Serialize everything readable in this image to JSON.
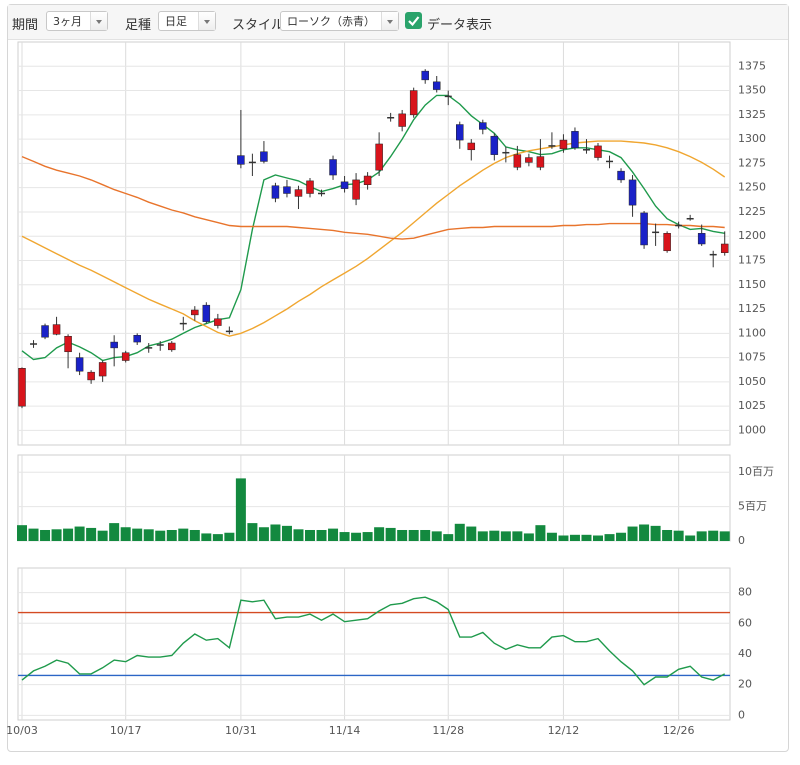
{
  "toolbar": {
    "period_label": "期間",
    "period_value": "3ヶ月",
    "bar_label": "足種",
    "bar_value": "日足",
    "style_label": "スタイル",
    "style_value": "ローソク（赤青）",
    "data_display": "データ表示",
    "data_display_checked": true
  },
  "chart_data": [
    {
      "type": "candlestick",
      "categories": [
        "10/03",
        null,
        null,
        null,
        null,
        null,
        null,
        null,
        null,
        "10/17",
        null,
        null,
        null,
        null,
        null,
        null,
        null,
        null,
        null,
        "10/31",
        null,
        null,
        null,
        null,
        null,
        null,
        null,
        null,
        "11/14",
        null,
        null,
        null,
        null,
        null,
        null,
        null,
        null,
        "11/28",
        null,
        null,
        null,
        null,
        null,
        null,
        null,
        null,
        null,
        "12/12",
        null,
        null,
        null,
        null,
        null,
        null,
        null,
        null,
        null,
        "12/26",
        null,
        null,
        null,
        null
      ],
      "open": [
        1025,
        1089,
        1108,
        1099,
        1081,
        1075,
        1052,
        1056,
        1091,
        1072,
        1098,
        1085,
        1088,
        1083,
        1110,
        1119,
        1129,
        1108,
        1102,
        1283,
        1276,
        1287,
        1252,
        1251,
        1241,
        1244,
        1244,
        1279,
        1256,
        1238,
        1253,
        1268,
        1322,
        1313,
        1325,
        1370,
        1359,
        1344,
        1315,
        1289,
        1317,
        1303,
        1286,
        1271,
        1276,
        1271,
        1293,
        1290,
        1308,
        1289,
        1281,
        1277,
        1267,
        1258,
        1224,
        1204,
        1185,
        1211,
        1218,
        1203,
        1181,
        1183
      ],
      "high": [
        1065,
        1093,
        1110,
        1117,
        1099,
        1080,
        1062,
        1072,
        1098,
        1082,
        1100,
        1090,
        1092,
        1092,
        1117,
        1128,
        1132,
        1120,
        1107,
        1330,
        1285,
        1298,
        1255,
        1258,
        1252,
        1260,
        1248,
        1283,
        1262,
        1265,
        1266,
        1307,
        1327,
        1330,
        1353,
        1372,
        1365,
        1350,
        1318,
        1300,
        1320,
        1306,
        1292,
        1293,
        1285,
        1300,
        1307,
        1305,
        1312,
        1300,
        1296,
        1283,
        1270,
        1263,
        1226,
        1213,
        1205,
        1215,
        1222,
        1212,
        1185,
        1205
      ],
      "low": [
        1023,
        1085,
        1094,
        1098,
        1064,
        1057,
        1048,
        1050,
        1066,
        1070,
        1088,
        1080,
        1082,
        1081,
        1103,
        1113,
        1110,
        1105,
        1099,
        1270,
        1262,
        1275,
        1235,
        1240,
        1228,
        1240,
        1241,
        1258,
        1245,
        1232,
        1248,
        1262,
        1318,
        1308,
        1322,
        1357,
        1348,
        1335,
        1290,
        1278,
        1305,
        1278,
        1276,
        1268,
        1272,
        1268,
        1290,
        1286,
        1289,
        1285,
        1278,
        1270,
        1255,
        1220,
        1187,
        1190,
        1183,
        1208,
        1216,
        1190,
        1168,
        1180
      ],
      "close": [
        1064,
        1089,
        1096,
        1109,
        1097,
        1061,
        1060,
        1070,
        1085,
        1080,
        1091,
        1085,
        1088,
        1090,
        1110,
        1124,
        1112,
        1115,
        1102,
        1274,
        1276,
        1277,
        1239,
        1244,
        1248,
        1257,
        1244,
        1263,
        1249,
        1258,
        1262,
        1295,
        1322,
        1326,
        1350,
        1361,
        1351,
        1344,
        1299,
        1296,
        1310,
        1284,
        1286,
        1284,
        1281,
        1282,
        1293,
        1299,
        1291,
        1289,
        1293,
        1277,
        1258,
        1232,
        1191,
        1204,
        1203,
        1211,
        1218,
        1192,
        1181,
        1192
      ],
      "up_color": "#d8141c",
      "down_color": "#1a22c8",
      "doji_color": "#333333",
      "series": [
        {
          "color": "#1f9a4c",
          "values": [
            1082,
            1073,
            1075,
            1085,
            1091,
            1086,
            1080,
            1072,
            1075,
            1076,
            1080,
            1087,
            1090,
            1094,
            1100,
            1106,
            1110,
            1114,
            1116,
            1145,
            1207,
            1258,
            1263,
            1260,
            1257,
            1251,
            1246,
            1249,
            1253,
            1254,
            1258,
            1266,
            1282,
            1300,
            1320,
            1335,
            1345,
            1345,
            1336,
            1324,
            1315,
            1306,
            1292,
            1289,
            1287,
            1284,
            1285,
            1289,
            1291,
            1291,
            1289,
            1287,
            1281,
            1266,
            1249,
            1231,
            1218,
            1212,
            1207,
            1208,
            1205,
            1203
          ]
        },
        {
          "color": "#f0a630",
          "values": [
            1200,
            1194,
            1188,
            1182,
            1176,
            1170,
            1165,
            1159,
            1153,
            1147,
            1141,
            1135,
            1130,
            1125,
            1120,
            1113,
            1107,
            1101,
            1097,
            1100,
            1105,
            1111,
            1118,
            1125,
            1133,
            1140,
            1148,
            1155,
            1162,
            1169,
            1177,
            1186,
            1195,
            1204,
            1214,
            1224,
            1234,
            1243,
            1252,
            1260,
            1268,
            1275,
            1281,
            1285,
            1288,
            1290,
            1292,
            1294,
            1296,
            1297,
            1298,
            1298,
            1298,
            1297,
            1296,
            1294,
            1291,
            1287,
            1282,
            1276,
            1269,
            1261
          ]
        },
        {
          "color": "#e8742c",
          "values": [
            1282,
            1277,
            1272,
            1268,
            1265,
            1262,
            1258,
            1253,
            1248,
            1244,
            1240,
            1235,
            1231,
            1227,
            1224,
            1220,
            1217,
            1214,
            1211,
            1210,
            1210,
            1210,
            1210,
            1210,
            1209,
            1208,
            1207,
            1206,
            1204,
            1203,
            1202,
            1200,
            1198,
            1197,
            1198,
            1201,
            1204,
            1207,
            1208,
            1209,
            1209,
            1210,
            1210,
            1210,
            1210,
            1210,
            1210,
            1211,
            1211,
            1212,
            1212,
            1213,
            1213,
            1213,
            1213,
            1212,
            1212,
            1211,
            1211,
            1210,
            1210,
            1209
          ]
        }
      ],
      "ylim": [
        985,
        1400
      ],
      "yticks": [
        1000,
        1025,
        1050,
        1075,
        1100,
        1125,
        1150,
        1175,
        1200,
        1225,
        1250,
        1275,
        1300,
        1325,
        1350,
        1375
      ],
      "grid": true
    },
    {
      "type": "bar",
      "color": "#13893f",
      "values": [
        2.3,
        1.8,
        1.6,
        1.7,
        1.8,
        2.1,
        1.9,
        1.5,
        2.6,
        2.0,
        1.8,
        1.7,
        1.5,
        1.6,
        1.8,
        1.6,
        1.1,
        1.0,
        1.2,
        9.1,
        2.6,
        2.0,
        2.4,
        2.2,
        1.7,
        1.6,
        1.6,
        1.8,
        1.3,
        1.2,
        1.3,
        2.0,
        1.9,
        1.6,
        1.6,
        1.6,
        1.4,
        1.0,
        2.5,
        2.1,
        1.4,
        1.5,
        1.4,
        1.4,
        1.1,
        2.3,
        1.2,
        0.8,
        0.9,
        0.9,
        0.8,
        1.0,
        1.2,
        2.1,
        2.4,
        2.2,
        1.6,
        1.5,
        0.8,
        1.4,
        1.5,
        1.4
      ],
      "ylim": [
        0,
        12.5
      ],
      "yticks": [
        0,
        {
          "value": 5,
          "label": "5百万"
        },
        {
          "value": 10,
          "label": "10百万"
        }
      ],
      "grid": true
    },
    {
      "type": "line",
      "series": [
        {
          "color": "#1f9a4c",
          "values": [
            23,
            29,
            32,
            36,
            34,
            27,
            27,
            31,
            36,
            35,
            39,
            38,
            38,
            39,
            47,
            53,
            49,
            50,
            44,
            75,
            74,
            75,
            63,
            64,
            64,
            66,
            62,
            66,
            61,
            62,
            63,
            68,
            72,
            73,
            76,
            77,
            74,
            69,
            51,
            51,
            54,
            47,
            43,
            46,
            44,
            44,
            51,
            52,
            48,
            48,
            50,
            42,
            35,
            29,
            20,
            25,
            25,
            30,
            32,
            25,
            23,
            27
          ]
        }
      ],
      "levels": [
        {
          "value": 67,
          "color": "#d44a22"
        },
        {
          "value": 26,
          "color": "#2b66c6"
        }
      ],
      "ylim": [
        -3,
        96
      ],
      "yticks": [
        0,
        20,
        40,
        60,
        80
      ],
      "grid": true
    }
  ]
}
